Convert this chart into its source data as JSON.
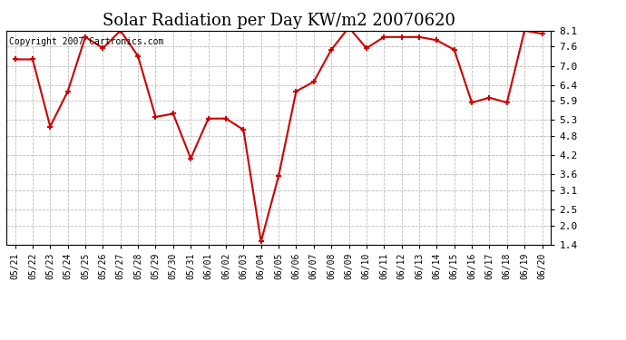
{
  "title": "Solar Radiation per Day KW/m2 20070620",
  "copyright_text": "Copyright 2007 Cartronics.com",
  "dates": [
    "05/21",
    "05/22",
    "05/23",
    "05/24",
    "05/25",
    "05/26",
    "05/27",
    "05/28",
    "05/29",
    "05/30",
    "05/31",
    "06/01",
    "06/02",
    "06/03",
    "06/04",
    "06/05",
    "06/06",
    "06/07",
    "06/08",
    "06/09",
    "06/10",
    "06/11",
    "06/12",
    "06/13",
    "06/14",
    "06/15",
    "06/16",
    "06/17",
    "06/18",
    "06/19",
    "06/20"
  ],
  "values": [
    7.2,
    7.2,
    5.1,
    6.2,
    7.9,
    7.55,
    8.1,
    7.3,
    5.4,
    5.5,
    4.1,
    5.35,
    5.35,
    5.0,
    1.5,
    3.55,
    6.2,
    6.5,
    7.5,
    8.2,
    7.55,
    7.9,
    7.9,
    7.9,
    7.8,
    7.5,
    5.85,
    6.0,
    5.85,
    8.1,
    8.0
  ],
  "line_color": "#cc0000",
  "marker": "+",
  "marker_size": 5,
  "line_width": 1.5,
  "ylim": [
    1.4,
    8.1
  ],
  "yticks": [
    1.4,
    2.0,
    2.5,
    3.1,
    3.6,
    4.2,
    4.8,
    5.3,
    5.9,
    6.4,
    7.0,
    7.6,
    8.1
  ],
  "background_color": "#ffffff",
  "plot_bg_color": "#ffffff",
  "grid_color": "#bbbbbb",
  "title_fontsize": 13,
  "copyright_fontsize": 7,
  "tick_fontsize": 7,
  "ytick_fontsize": 8
}
